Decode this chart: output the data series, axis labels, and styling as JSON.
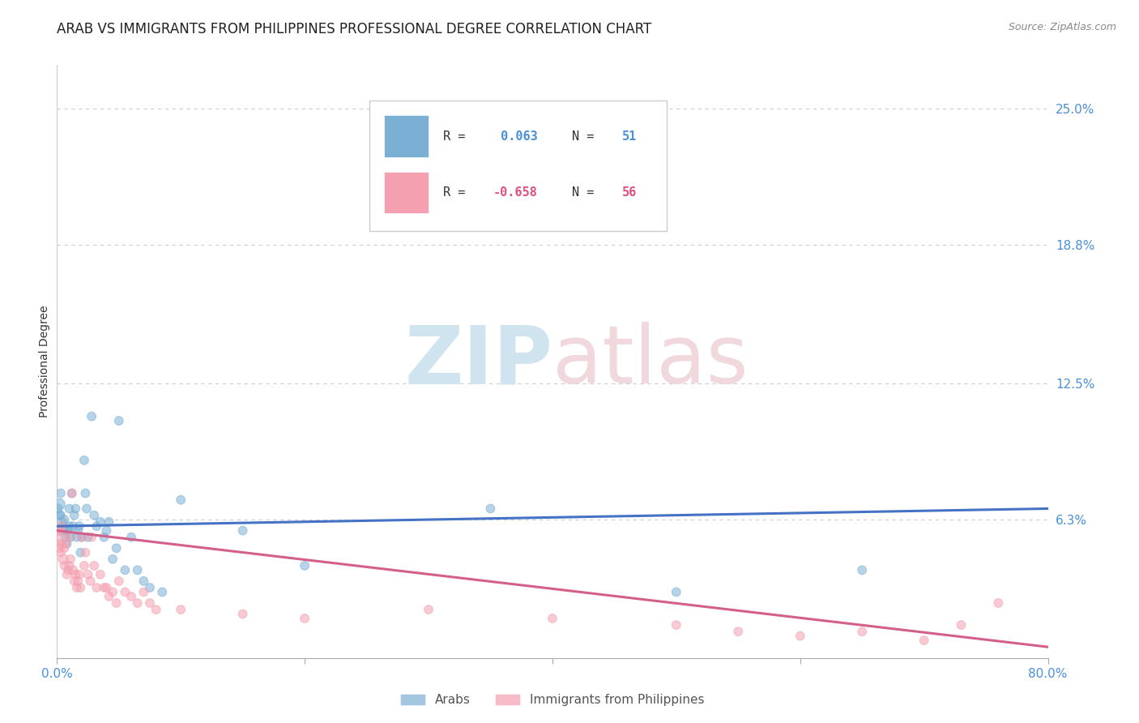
{
  "title": "ARAB VS IMMIGRANTS FROM PHILIPPINES PROFESSIONAL DEGREE CORRELATION CHART",
  "source": "Source: ZipAtlas.com",
  "ylabel": "Professional Degree",
  "ytick_labels": [
    "25.0%",
    "18.8%",
    "12.5%",
    "6.3%"
  ],
  "ytick_values": [
    0.25,
    0.188,
    0.125,
    0.063
  ],
  "legend_arab_r": "R =",
  "legend_arab_r_val": " 0.063",
  "legend_arab_n": "N =",
  "legend_arab_n_val": " 51",
  "legend_phil_r": "R =",
  "legend_phil_r_val": "-0.658",
  "legend_phil_n": "N =",
  "legend_phil_n_val": " 56",
  "arab_color": "#7bafd4",
  "phil_color": "#f4a0b0",
  "trend_arab_color": "#4472c4",
  "trend_phil_color": "#d45f8a",
  "background_color": "#ffffff",
  "grid_color": "#cccccc",
  "xmin": 0.0,
  "xmax": 0.8,
  "ymin": 0.0,
  "ymax": 0.27,
  "arab_trend_x0": 0.0,
  "arab_trend_y0": 0.06,
  "arab_trend_x1": 0.8,
  "arab_trend_y1": 0.068,
  "phil_trend_x0": 0.0,
  "phil_trend_y0": 0.058,
  "phil_trend_x1": 0.8,
  "phil_trend_y1": 0.005,
  "arab_x": [
    0.001,
    0.002,
    0.002,
    0.003,
    0.003,
    0.004,
    0.004,
    0.005,
    0.006,
    0.006,
    0.007,
    0.008,
    0.009,
    0.01,
    0.01,
    0.011,
    0.012,
    0.013,
    0.014,
    0.015,
    0.016,
    0.017,
    0.018,
    0.019,
    0.02,
    0.022,
    0.023,
    0.024,
    0.025,
    0.028,
    0.03,
    0.032,
    0.035,
    0.038,
    0.04,
    0.042,
    0.045,
    0.048,
    0.05,
    0.055,
    0.06,
    0.065,
    0.07,
    0.075,
    0.085,
    0.1,
    0.15,
    0.2,
    0.35,
    0.5,
    0.65
  ],
  "arab_y": [
    0.068,
    0.07,
    0.065,
    0.075,
    0.065,
    0.062,
    0.058,
    0.06,
    0.063,
    0.058,
    0.055,
    0.052,
    0.058,
    0.068,
    0.06,
    0.055,
    0.075,
    0.06,
    0.065,
    0.068,
    0.055,
    0.058,
    0.06,
    0.048,
    0.055,
    0.09,
    0.075,
    0.068,
    0.055,
    0.11,
    0.065,
    0.06,
    0.062,
    0.055,
    0.058,
    0.062,
    0.045,
    0.05,
    0.108,
    0.04,
    0.055,
    0.04,
    0.035,
    0.032,
    0.03,
    0.072,
    0.058,
    0.042,
    0.068,
    0.03,
    0.04
  ],
  "arab_s": [
    60,
    100,
    60,
    60,
    60,
    60,
    60,
    60,
    60,
    60,
    60,
    60,
    60,
    60,
    60,
    60,
    60,
    60,
    60,
    60,
    60,
    60,
    60,
    60,
    60,
    60,
    60,
    60,
    60,
    60,
    60,
    60,
    60,
    60,
    60,
    60,
    60,
    60,
    60,
    60,
    60,
    60,
    60,
    60,
    60,
    60,
    60,
    60,
    60,
    60,
    60
  ],
  "phil_x": [
    0.001,
    0.002,
    0.002,
    0.003,
    0.003,
    0.004,
    0.005,
    0.006,
    0.006,
    0.007,
    0.008,
    0.009,
    0.01,
    0.01,
    0.011,
    0.012,
    0.013,
    0.014,
    0.015,
    0.016,
    0.017,
    0.018,
    0.019,
    0.02,
    0.022,
    0.023,
    0.025,
    0.027,
    0.028,
    0.03,
    0.032,
    0.035,
    0.038,
    0.04,
    0.042,
    0.045,
    0.048,
    0.05,
    0.055,
    0.06,
    0.065,
    0.07,
    0.075,
    0.08,
    0.1,
    0.15,
    0.2,
    0.3,
    0.4,
    0.5,
    0.55,
    0.6,
    0.65,
    0.7,
    0.73,
    0.76
  ],
  "phil_y": [
    0.055,
    0.058,
    0.05,
    0.048,
    0.052,
    0.06,
    0.045,
    0.05,
    0.042,
    0.052,
    0.038,
    0.04,
    0.042,
    0.055,
    0.045,
    0.075,
    0.04,
    0.035,
    0.038,
    0.032,
    0.035,
    0.038,
    0.032,
    0.055,
    0.042,
    0.048,
    0.038,
    0.035,
    0.055,
    0.042,
    0.032,
    0.038,
    0.032,
    0.032,
    0.028,
    0.03,
    0.025,
    0.035,
    0.03,
    0.028,
    0.025,
    0.03,
    0.025,
    0.022,
    0.022,
    0.02,
    0.018,
    0.022,
    0.018,
    0.015,
    0.012,
    0.01,
    0.012,
    0.008,
    0.015,
    0.025
  ],
  "phil_s": [
    200,
    80,
    60,
    60,
    60,
    60,
    80,
    60,
    60,
    60,
    60,
    60,
    60,
    60,
    60,
    60,
    60,
    60,
    60,
    60,
    60,
    60,
    60,
    60,
    60,
    60,
    60,
    60,
    60,
    60,
    60,
    60,
    60,
    60,
    60,
    60,
    60,
    60,
    60,
    60,
    60,
    60,
    60,
    60,
    60,
    60,
    60,
    60,
    60,
    60,
    60,
    60,
    60,
    60,
    60,
    60
  ],
  "title_fontsize": 12,
  "tick_fontsize": 11,
  "legend_fontsize": 11,
  "ylabel_fontsize": 10
}
